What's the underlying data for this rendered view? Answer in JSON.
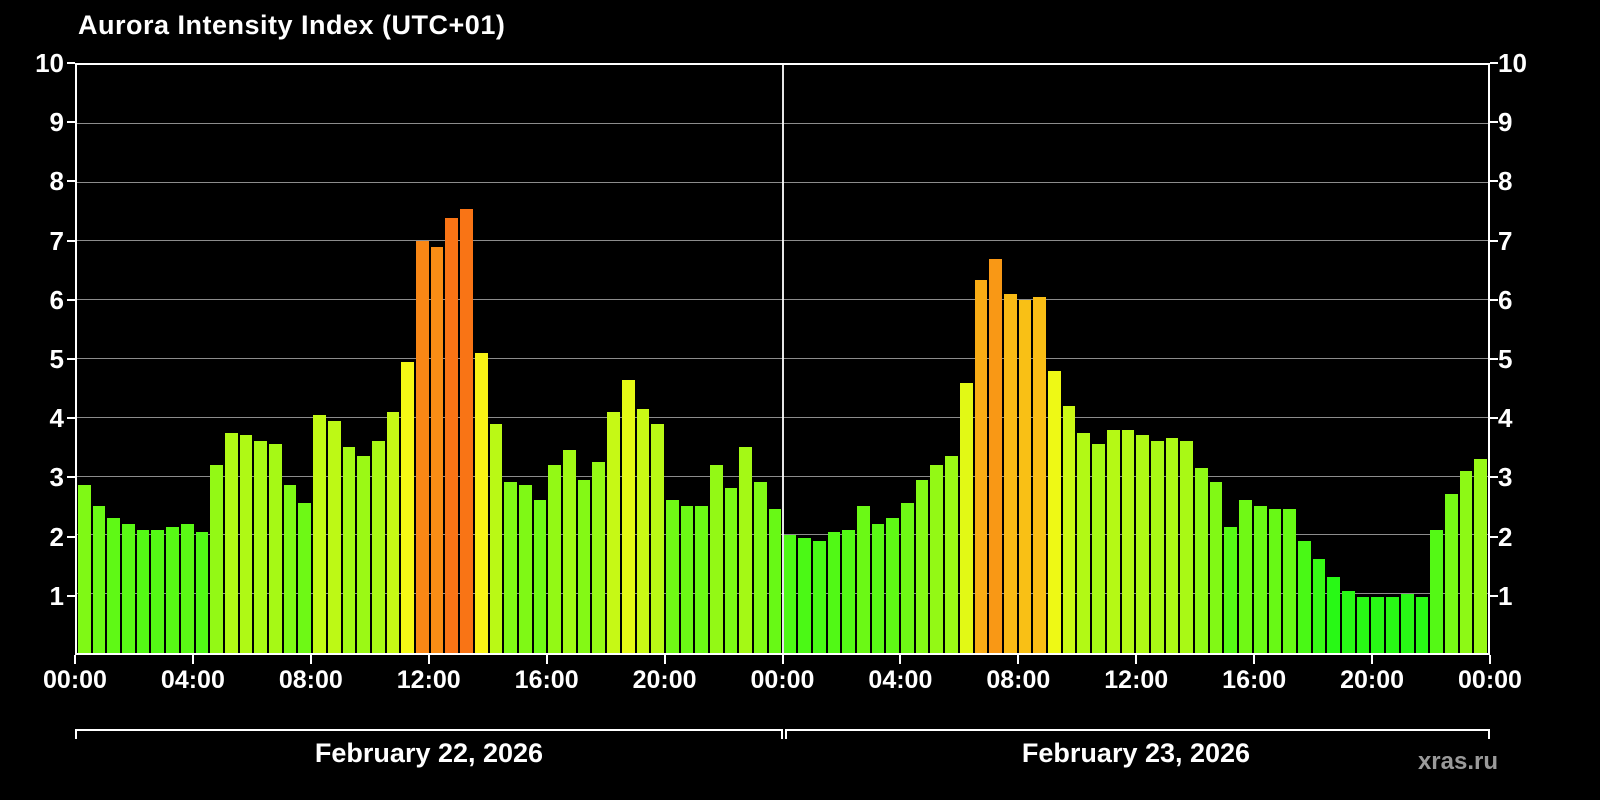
{
  "watermark": "xras.ru",
  "chart_data": {
    "type": "bar",
    "title": "Aurora Intensity Index (UTC+01)",
    "timezone": "UTC+01",
    "ylim": [
      0,
      10
    ],
    "yticks": [
      1,
      2,
      3,
      4,
      5,
      6,
      7,
      8,
      9,
      10
    ],
    "x_tick_labels": [
      "00:00",
      "04:00",
      "08:00",
      "12:00",
      "16:00",
      "20:00",
      "00:00",
      "04:00",
      "08:00",
      "12:00",
      "16:00",
      "20:00",
      "00:00"
    ],
    "interval_minutes": 30,
    "grid": "horizontal white lines at each integer, vertical white line at day boundary",
    "legend": "none",
    "colors": {
      "background": "#000000",
      "axis": "#ffffff",
      "low_green": "#4ce32a",
      "mid_yellow": "#f2ee1d",
      "high_orange": "#fb8d1a",
      "watermark_gray": "#9a9a9a"
    },
    "days": [
      {
        "label": "February 22, 2026",
        "values": [
          2.85,
          2.5,
          2.3,
          2.2,
          2.1,
          2.1,
          2.15,
          2.2,
          2.05,
          3.2,
          3.75,
          3.7,
          3.6,
          3.55,
          2.85,
          2.55,
          4.05,
          3.95,
          3.5,
          3.35,
          3.6,
          4.1,
          4.95,
          7.0,
          6.9,
          7.4,
          7.55,
          5.1,
          3.9,
          2.9,
          2.85,
          2.6,
          3.2,
          3.45,
          2.95,
          3.25,
          4.1,
          4.65,
          4.15,
          3.9,
          2.6,
          2.5,
          2.5,
          3.2,
          2.8,
          3.5,
          2.9,
          2.45
        ]
      },
      {
        "label": "February 23, 2026",
        "values": [
          2.0,
          1.95,
          1.9,
          2.05,
          2.1,
          2.5,
          2.2,
          2.3,
          2.55,
          2.95,
          3.2,
          3.35,
          4.6,
          6.35,
          6.7,
          6.1,
          6.0,
          6.05,
          4.8,
          4.2,
          3.75,
          3.55,
          3.8,
          3.8,
          3.7,
          3.6,
          3.65,
          3.6,
          3.15,
          2.9,
          2.15,
          2.6,
          2.5,
          2.45,
          2.45,
          1.9,
          1.6,
          1.3,
          1.05,
          0.95,
          0.95,
          0.95,
          1.0,
          0.95,
          2.1,
          2.7,
          3.1,
          3.3
        ]
      }
    ]
  }
}
